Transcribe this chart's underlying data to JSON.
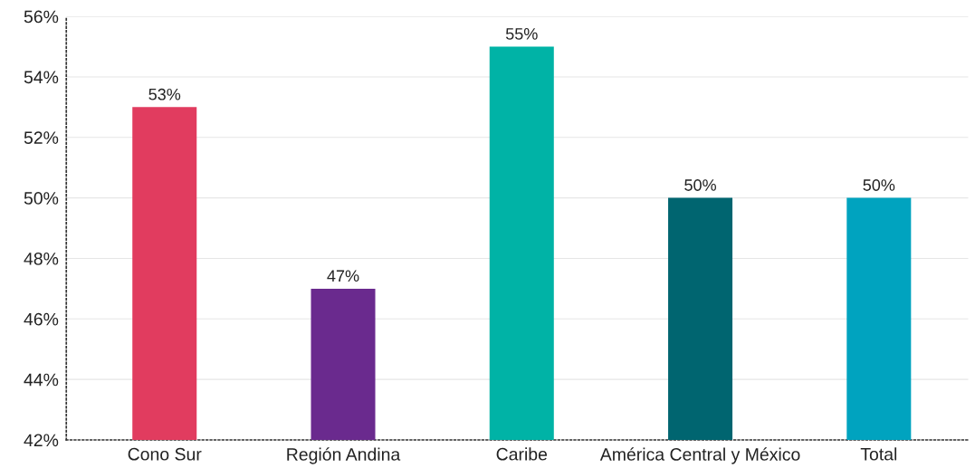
{
  "chart_data": {
    "type": "bar",
    "categories": [
      "Cono Sur",
      "Región Andina",
      "Caribe",
      "América Central y México",
      "Total"
    ],
    "values": [
      53,
      47,
      55,
      50,
      50
    ],
    "colors": [
      "#e13c5f",
      "#6a2a8e",
      "#00b3a6",
      "#006570",
      "#00a3bf"
    ],
    "value_labels": [
      "53%",
      "47%",
      "55%",
      "50%",
      "50%"
    ],
    "ylim": [
      42,
      56
    ],
    "yticks": [
      {
        "value": 42,
        "label": "42%"
      },
      {
        "value": 44,
        "label": "44%"
      },
      {
        "value": 46,
        "label": "46%"
      },
      {
        "value": 48,
        "label": "48%"
      },
      {
        "value": 50,
        "label": "50%"
      },
      {
        "value": 52,
        "label": "52%"
      },
      {
        "value": 54,
        "label": "54%"
      },
      {
        "value": 56,
        "label": "56%"
      }
    ],
    "grid": "y"
  }
}
